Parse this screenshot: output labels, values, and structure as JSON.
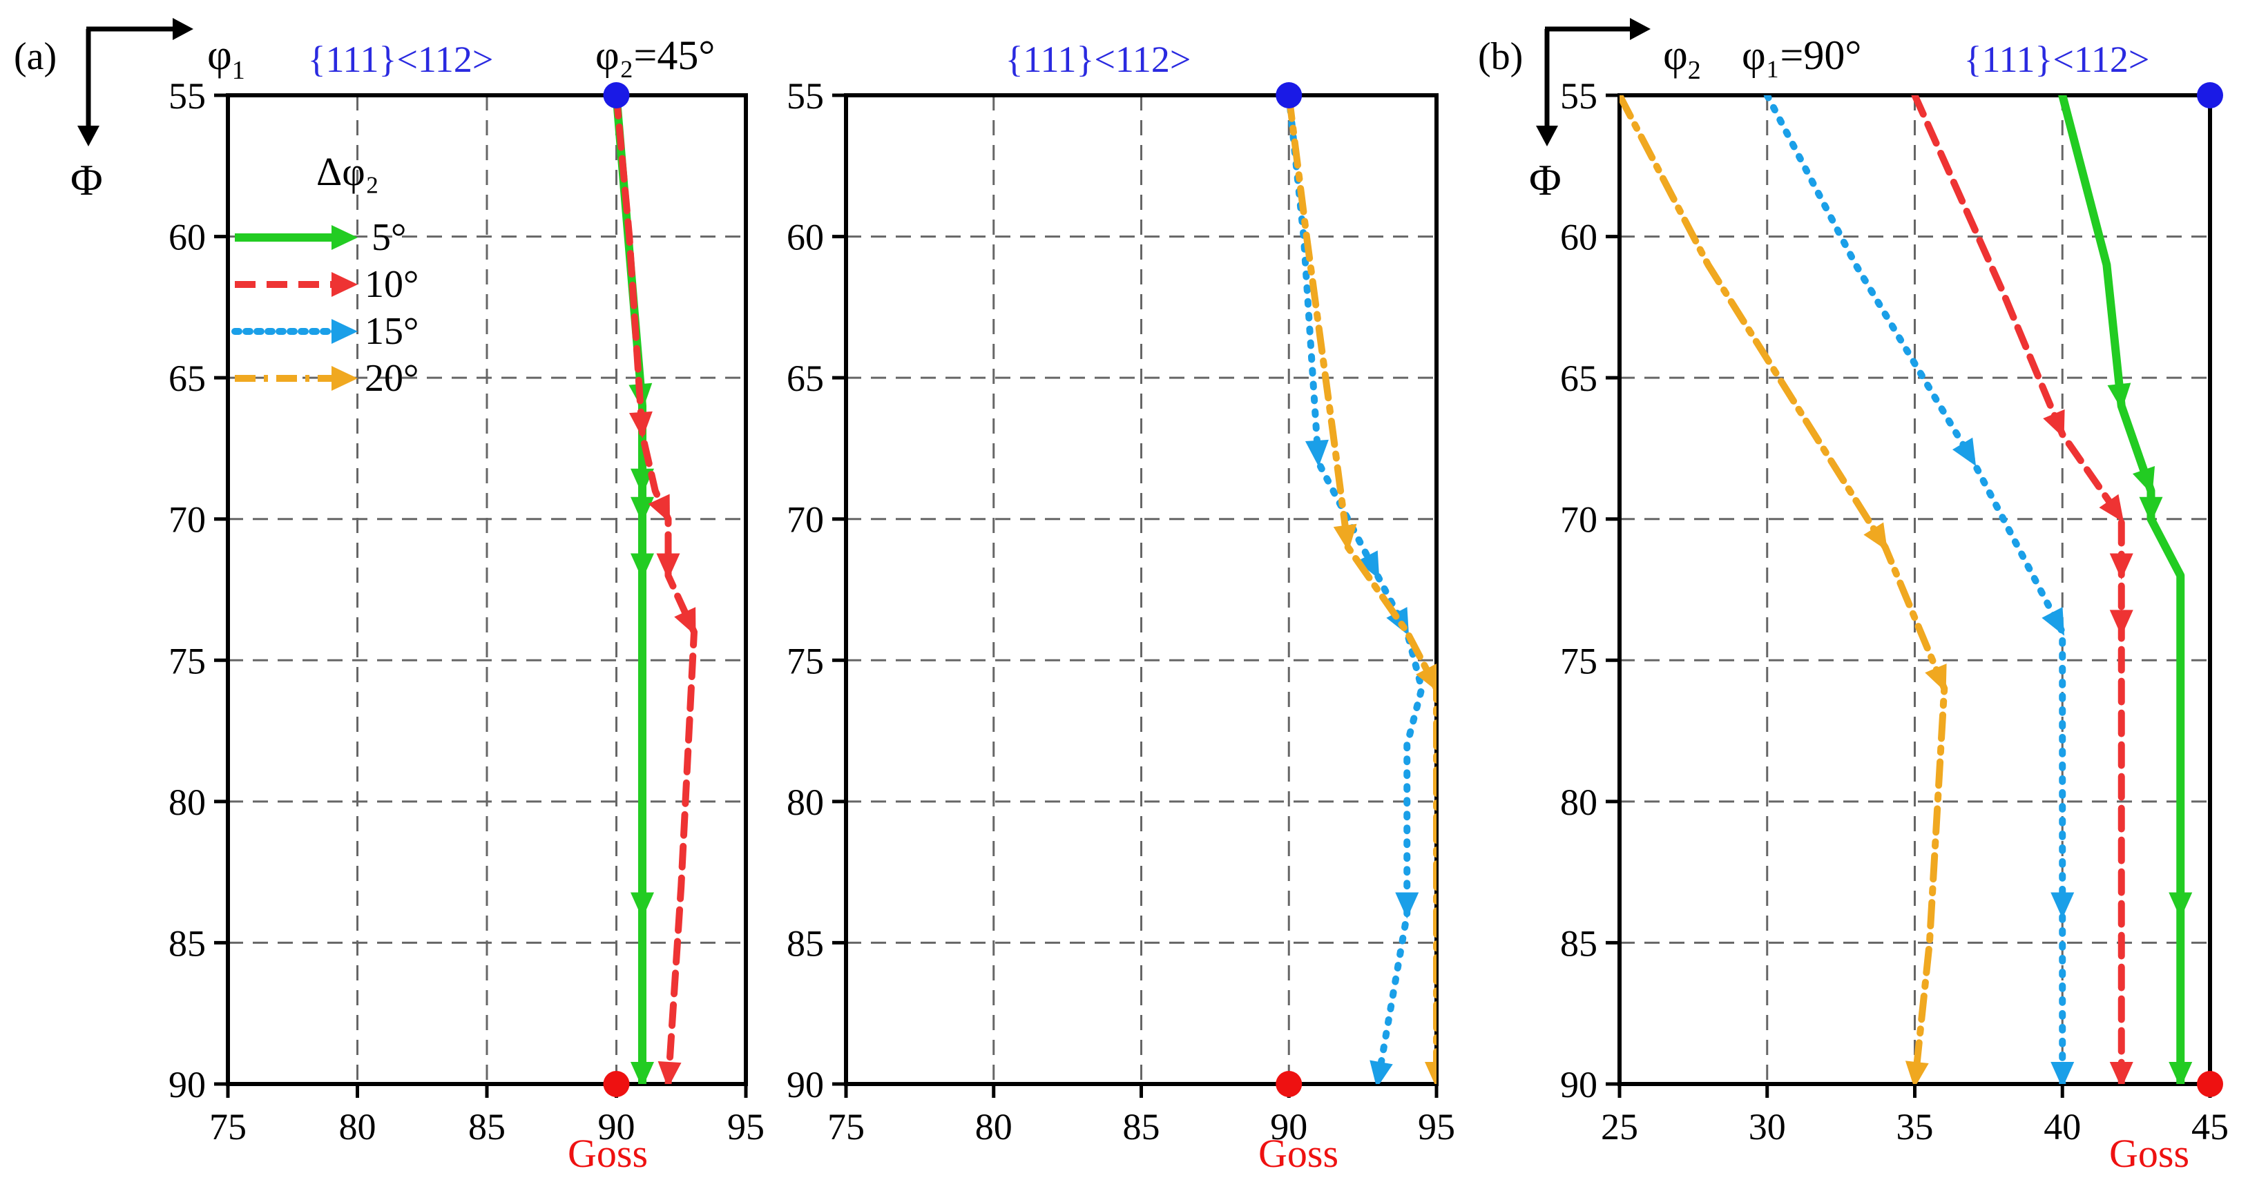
{
  "figure": {
    "panel_a_label": "(a)",
    "panel_b_label": "(b)",
    "phi1_symbol": "φ",
    "phi1_sub": "1",
    "phi2_symbol": "φ",
    "phi2_sub": "2",
    "Phi_symbol": "Φ",
    "condition_a": "φ₂=45°",
    "condition_b": "φ₁=90°",
    "legend_title": "Δφ₂",
    "start_label": "{111}<112>",
    "end_label": "Goss",
    "colors": {
      "5": "#22cc22",
      "10": "#ee3333",
      "15": "#1a9fe8",
      "20": "#f0a820",
      "start": "#1a1ae6",
      "end": "#ee1111",
      "start_text": "#2a2ae0",
      "end_text": "#ee1111"
    }
  },
  "chart_data": [
    {
      "id": "a-left",
      "type": "line",
      "title": "φ2=45°",
      "xlabel": "φ1",
      "ylabel": "Φ",
      "xlim": [
        75,
        95
      ],
      "ylim": [
        55,
        90
      ],
      "y_inverted": true,
      "xticks": [
        75,
        80,
        85,
        90,
        95
      ],
      "yticks": [
        55,
        60,
        65,
        70,
        75,
        80,
        85,
        90
      ],
      "grid": true,
      "legend": {
        "title": "Δφ2",
        "position": "top-left",
        "entries": [
          "5°",
          "10°",
          "15°",
          "20°"
        ]
      },
      "series": [
        {
          "name": "5°",
          "key": "5",
          "style": "solid",
          "x": [
            90,
            91,
            91,
            91,
            91,
            91,
            91
          ],
          "y": [
            55,
            66,
            69,
            70,
            72,
            84,
            90
          ],
          "arrows": [
            1,
            2,
            3,
            4,
            5,
            6
          ]
        },
        {
          "name": "10°",
          "key": "10",
          "style": "dash",
          "x": [
            90,
            90.5,
            91,
            91.5,
            92,
            92,
            93,
            92.5,
            92
          ],
          "y": [
            55,
            60,
            67,
            69,
            70,
            72,
            74,
            83,
            90
          ],
          "arrows": [
            2,
            4,
            5,
            6,
            8
          ]
        }
      ],
      "points": [
        {
          "label": "{111}<112>",
          "x": 90,
          "y": 55,
          "kind": "start"
        },
        {
          "label": "Goss",
          "x": 90,
          "y": 90,
          "kind": "end"
        }
      ]
    },
    {
      "id": "a-right",
      "type": "line",
      "xlabel": "φ1",
      "ylabel": "Φ",
      "xlim": [
        75,
        95
      ],
      "ylim": [
        55,
        90
      ],
      "y_inverted": true,
      "xticks": [
        75,
        80,
        85,
        90,
        95
      ],
      "yticks": [
        55,
        60,
        65,
        70,
        75,
        80,
        85,
        90
      ],
      "grid": true,
      "series": [
        {
          "name": "15°",
          "key": "15",
          "style": "dot",
          "x": [
            90,
            90.5,
            91,
            92,
            93,
            94,
            94.5,
            94,
            94,
            93
          ],
          "y": [
            55,
            60,
            68,
            70,
            72,
            74,
            76,
            78,
            84,
            90
          ],
          "arrows": [
            2,
            4,
            5,
            8,
            9
          ]
        },
        {
          "name": "20°",
          "key": "20",
          "style": "dashdot",
          "x": [
            90,
            90.6,
            91.5,
            92,
            94,
            95,
            95,
            95
          ],
          "y": [
            55,
            60,
            67,
            71,
            74,
            76,
            84,
            90
          ],
          "arrows": [
            3,
            5,
            7
          ]
        }
      ],
      "points": [
        {
          "label": "{111}<112>",
          "x": 90,
          "y": 55,
          "kind": "start"
        },
        {
          "label": "Goss",
          "x": 90,
          "y": 90,
          "kind": "end"
        }
      ]
    },
    {
      "id": "b",
      "type": "line",
      "title": "φ1=90°",
      "xlabel": "φ2",
      "ylabel": "Φ",
      "xlim": [
        25,
        45
      ],
      "ylim": [
        55,
        90
      ],
      "y_inverted": true,
      "xticks": [
        25,
        30,
        35,
        40,
        45
      ],
      "yticks": [
        55,
        60,
        65,
        70,
        75,
        80,
        85,
        90
      ],
      "grid": true,
      "series": [
        {
          "name": "5°",
          "key": "5",
          "style": "solid",
          "x": [
            40,
            41.5,
            42,
            43,
            43,
            44,
            44,
            44
          ],
          "y": [
            55,
            61,
            66,
            69,
            70,
            72,
            84,
            90
          ],
          "arrows": [
            2,
            3,
            4,
            6,
            7
          ]
        },
        {
          "name": "10°",
          "key": "10",
          "style": "dash",
          "x": [
            35,
            38,
            40,
            42,
            42,
            42,
            42
          ],
          "y": [
            55,
            62,
            67,
            70,
            72,
            74,
            90
          ],
          "arrows": [
            2,
            3,
            4,
            5,
            6
          ]
        },
        {
          "name": "15°",
          "key": "15",
          "style": "dot",
          "x": [
            30,
            33,
            37,
            40,
            40,
            40
          ],
          "y": [
            55,
            61,
            68,
            74,
            84,
            90
          ],
          "arrows": [
            2,
            3,
            4,
            5
          ]
        },
        {
          "name": "20°",
          "key": "20",
          "style": "dashdot",
          "x": [
            25,
            28,
            34,
            36,
            35.5,
            35
          ],
          "y": [
            55,
            61,
            71,
            76,
            85,
            90
          ],
          "arrows": [
            2,
            3,
            5
          ]
        }
      ],
      "points": [
        {
          "label": "{111}<112>",
          "x": 45,
          "y": 55,
          "kind": "start"
        },
        {
          "label": "Goss",
          "x": 45,
          "y": 90,
          "kind": "end"
        }
      ]
    }
  ]
}
